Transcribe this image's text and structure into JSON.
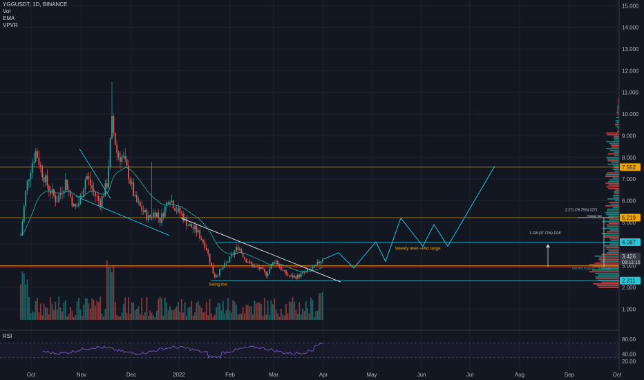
{
  "legend": {
    "symbol": "YGGUSDT, 1D, BINANCE",
    "vol": "Vol",
    "ema": "EMA",
    "vpvr": "VPVR"
  },
  "rsi_label": "RSI",
  "colors": {
    "background": "#131722",
    "up": "#26a69a",
    "down": "#ef5350",
    "level_line": "#f0a500",
    "cyan": "#26c6da",
    "ema": "#2aa198",
    "rsi": "#7e57c2"
  },
  "chart_data": {
    "type": "candlestick",
    "x_ticks": [
      "Oct",
      "Nov",
      "Dec",
      "2022",
      "Feb",
      "Mar",
      "Apr",
      "May",
      "Jun",
      "Jul",
      "Aug",
      "Sep",
      "Oct"
    ],
    "y_ticks": [
      "15.000",
      "14.000",
      "13.000",
      "12.000",
      "11.000",
      "10.000",
      "9.000",
      "8.000",
      "7.000",
      "6.000",
      "5.000",
      "4.000",
      "3.000",
      "2.000",
      "1.000"
    ],
    "y_range": [
      0.5,
      15.2
    ],
    "price_tags": [
      {
        "label": "7.552",
        "value": 7.552,
        "color": "#f0a500"
      },
      {
        "label": "5.219",
        "value": 5.219,
        "color": "#f0a500"
      },
      {
        "label": "4.087",
        "value": 4.087,
        "color": "#26c6da"
      },
      {
        "label": "3.426",
        "value": 3.426,
        "color": "#363a45"
      },
      {
        "label": "2.311",
        "value": 2.311,
        "color": "#26c6da"
      }
    ],
    "current_price_sub": "08:11:15",
    "annotations": {
      "swing_low": "Swing low",
      "weekly_level": "Weekly level +Mid range",
      "monthly_support": "Monthly Support / Mid range",
      "range_top": "Range top",
      "measure_small": "1.118 (37.72%) 1118",
      "measure_big": "2.271 (76.75%) 2271"
    },
    "rsi_ticks": [
      "80.00",
      "40.00",
      "20.00"
    ]
  }
}
